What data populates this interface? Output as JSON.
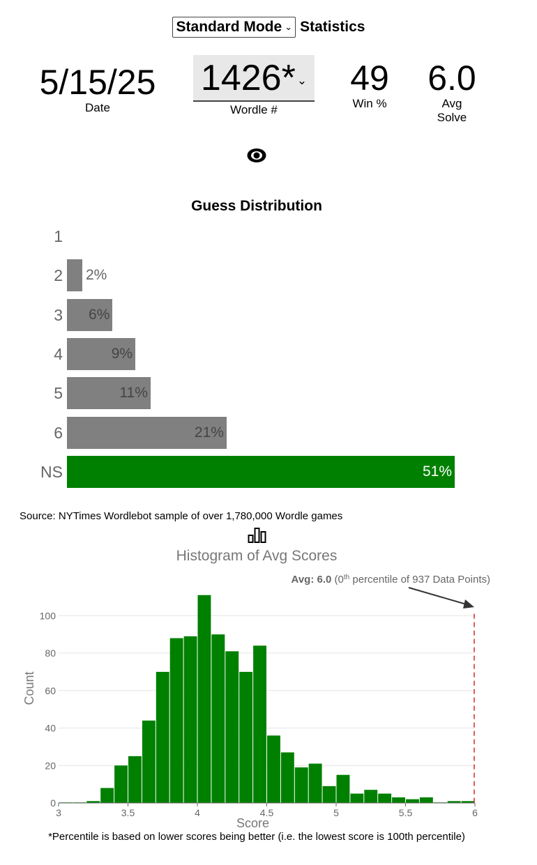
{
  "header": {
    "mode_label": "Standard Mode",
    "title": "Statistics"
  },
  "stats": {
    "date": {
      "value": "5/15/25",
      "label": "Date"
    },
    "wordle": {
      "value": "1426*",
      "label": "Wordle #"
    },
    "win": {
      "value": "49",
      "label": "Win %"
    },
    "avg": {
      "value": "6.0",
      "label_line1": "Avg",
      "label_line2": "Solve"
    }
  },
  "distribution": {
    "title": "Guess Distribution",
    "rows": [
      {
        "label": "1",
        "pct_text": "",
        "value": 0
      },
      {
        "label": "2",
        "pct_text": "2%",
        "value": 2
      },
      {
        "label": "3",
        "pct_text": "6%",
        "value": 6
      },
      {
        "label": "4",
        "pct_text": "9%",
        "value": 9
      },
      {
        "label": "5",
        "pct_text": "11%",
        "value": 11
      },
      {
        "label": "6",
        "pct_text": "21%",
        "value": 21
      },
      {
        "label": "NS",
        "pct_text": "51%",
        "value": 51
      }
    ]
  },
  "source_text": "Source: NYTimes Wordlebot sample of over 1,780,000 Wordle games",
  "colors": {
    "bar_gray": "#808080",
    "bar_green": "#008000",
    "marker_red": "#d62728"
  },
  "chart_data": {
    "type": "bar",
    "title": "Histogram of Avg Scores",
    "xlabel": "Score",
    "ylabel": "Count",
    "xlim": [
      3,
      6
    ],
    "ylim": [
      0,
      115
    ],
    "x_ticks": [
      3,
      3.5,
      4,
      4.5,
      5,
      5.5,
      6
    ],
    "x_tick_labels": [
      "3",
      "3.5",
      "4",
      "4.5",
      "5",
      "5.5",
      "6"
    ],
    "y_ticks": [
      0,
      20,
      40,
      60,
      80,
      100
    ],
    "y_tick_labels": [
      "0",
      "20",
      "40",
      "60",
      "80",
      "100"
    ],
    "bin_width": 0.1,
    "bin_starts": [
      3.0,
      3.1,
      3.2,
      3.3,
      3.4,
      3.5,
      3.6,
      3.7,
      3.8,
      3.9,
      4.0,
      4.1,
      4.2,
      4.3,
      4.4,
      4.5,
      4.6,
      4.7,
      4.8,
      4.9,
      5.0,
      5.1,
      5.2,
      5.3,
      5.4,
      5.5,
      5.6,
      5.7,
      5.8,
      5.9
    ],
    "values": [
      0,
      0,
      1,
      8,
      20,
      25,
      44,
      70,
      88,
      89,
      111,
      90,
      81,
      70,
      84,
      36,
      27,
      19,
      21,
      9,
      15,
      5,
      7,
      5,
      3,
      2,
      3,
      0,
      1,
      1
    ],
    "grid": "horizontal",
    "annotation": {
      "bold": "Avg: 6.0",
      "pre": " (0",
      "sup": "th",
      "post": " percentile of 937 Data Points)",
      "marker_x": 6.0
    }
  },
  "footnote": "*Percentile is based on lower scores being better (i.e. the lowest score is 100th percentile)"
}
